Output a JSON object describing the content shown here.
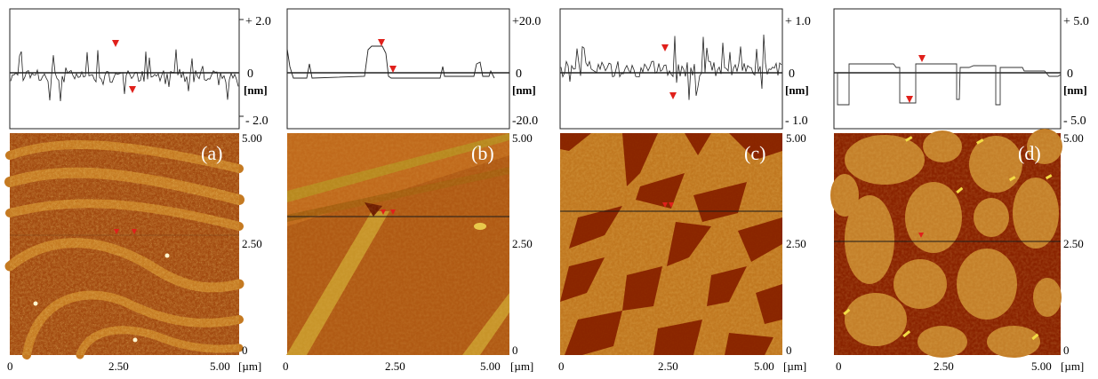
{
  "figure": {
    "colors": {
      "profile_line": "#1a1a1a",
      "marker": "#e0201b",
      "afm_dark": "#7a1f00",
      "afm_mid": "#b5540e",
      "afm_light": "#d9962a",
      "afm_highlight": "#f0d64a"
    },
    "x_ticks": [
      "0",
      "2.50",
      "5.00"
    ],
    "x_unit": "[µm]",
    "image_y_ticks": [
      "5.00",
      "2.50",
      "0"
    ],
    "panels": [
      {
        "label": "(a)",
        "profile_ticks": [
          "+ 2.0",
          "0",
          "[nm]",
          "- 2.0"
        ]
      },
      {
        "label": "(b)",
        "profile_ticks": [
          "+20.0",
          "0",
          "[nm]",
          "-20.0"
        ]
      },
      {
        "label": "(c)",
        "profile_ticks": [
          "+ 1.0",
          "0",
          "[nm]",
          "- 1.0"
        ]
      },
      {
        "label": "(d)",
        "profile_ticks": [
          "+ 5.0",
          "0",
          "[nm]",
          "- 5.0"
        ]
      }
    ]
  }
}
